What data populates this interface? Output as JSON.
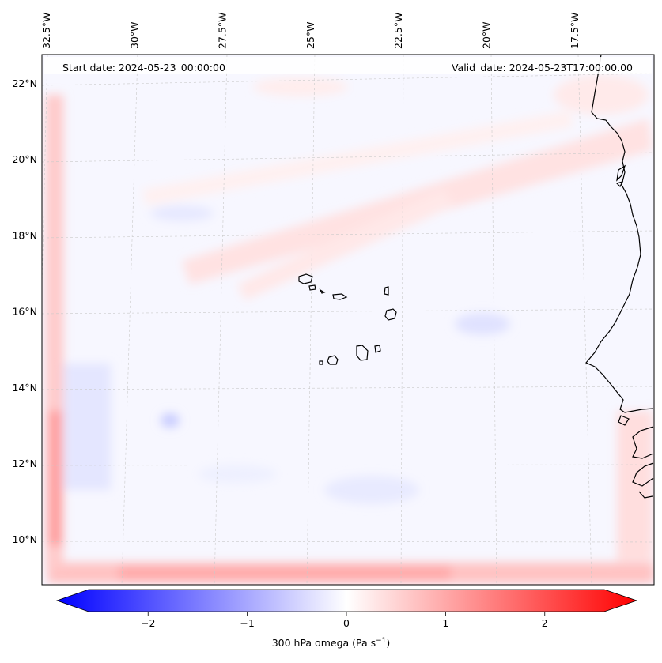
{
  "annotations": {
    "start_date": "Start date: 2024-05-23_00:00:00",
    "valid_date": "Valid_date: 2024-05-23T17:00:00.00"
  },
  "axes": {
    "lon_labels": [
      {
        "text": "32.5°W",
        "lon": -32.5
      },
      {
        "text": "30°W",
        "lon": -30.0
      },
      {
        "text": "27.5°W",
        "lon": -27.5
      },
      {
        "text": "25°W",
        "lon": -25.0
      },
      {
        "text": "22.5°W",
        "lon": -22.5
      },
      {
        "text": "20°W",
        "lon": -20.0
      },
      {
        "text": "17.5°W",
        "lon": -17.5
      }
    ],
    "lat_labels": [
      {
        "text": "22°N",
        "lat": 22
      },
      {
        "text": "20°N",
        "lat": 20
      },
      {
        "text": "18°N",
        "lat": 18
      },
      {
        "text": "16°N",
        "lat": 16
      },
      {
        "text": "14°N",
        "lat": 14
      },
      {
        "text": "12°N",
        "lat": 12
      },
      {
        "text": "10°N",
        "lat": 10
      }
    ]
  },
  "colorbar": {
    "label_prefix": "300 hPa omega (Pa s",
    "label_exp": "−1",
    "label_suffix": ")",
    "min": -2.6,
    "max": 2.6,
    "extend": "both",
    "ticks": [
      {
        "value": -2,
        "text": "−2"
      },
      {
        "value": -1,
        "text": "−1"
      },
      {
        "value": 0,
        "text": "0"
      },
      {
        "value": 1,
        "text": "1"
      },
      {
        "value": 2,
        "text": "2"
      }
    ],
    "colormap": "bwr",
    "low_color": "#0000ff",
    "mid_color": "#ffffff",
    "high_color": "#ff0000"
  }
}
